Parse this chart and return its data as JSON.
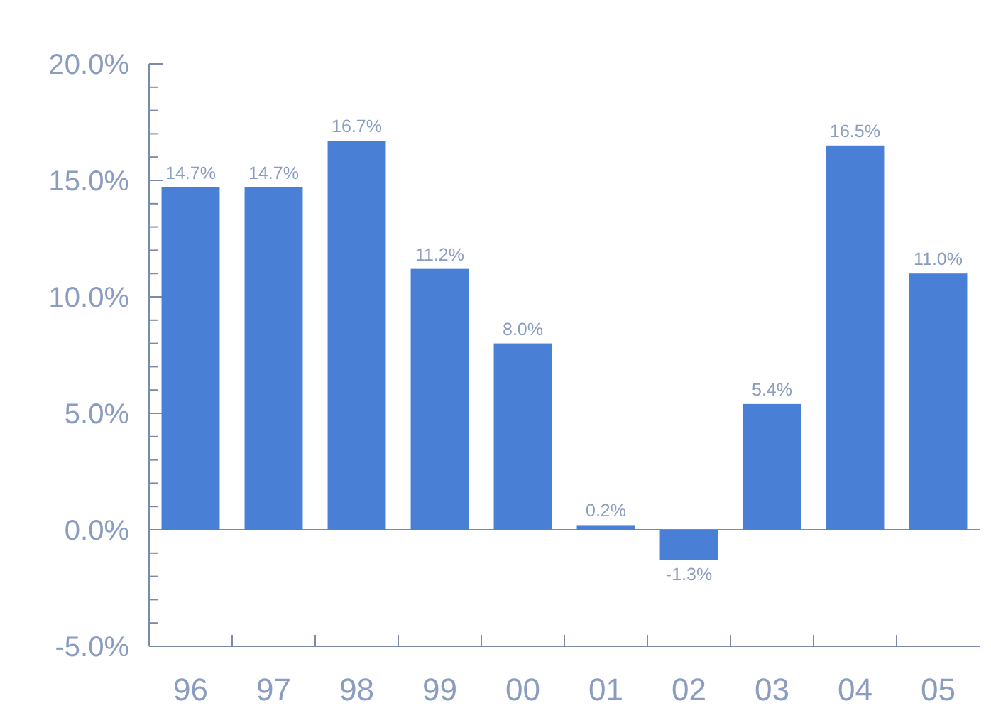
{
  "chart_data": {
    "type": "bar",
    "categories": [
      "96",
      "97",
      "98",
      "99",
      "00",
      "01",
      "02",
      "03",
      "04",
      "05"
    ],
    "values": [
      14.7,
      14.7,
      16.7,
      11.2,
      8.0,
      0.2,
      -1.3,
      5.4,
      16.5,
      11.0
    ],
    "value_labels": [
      "14.7%",
      "14.7%",
      "16.7%",
      "11.2%",
      "8.0%",
      "0.2%",
      "-1.3%",
      "5.4%",
      "16.5%",
      "11.0%"
    ],
    "color": "#4a7fd6",
    "ylim": [
      -5,
      20
    ],
    "yticks": [
      {
        "value": -5,
        "label": "-5.0%"
      },
      {
        "value": -4,
        "label": null
      },
      {
        "value": -3,
        "label": null
      },
      {
        "value": -2,
        "label": null
      },
      {
        "value": -1,
        "label": null
      },
      {
        "value": 0,
        "label": "0.0%"
      },
      {
        "value": 1,
        "label": null
      },
      {
        "value": 2,
        "label": null
      },
      {
        "value": 3,
        "label": null
      },
      {
        "value": 4,
        "label": null
      },
      {
        "value": 5,
        "label": "5.0%"
      },
      {
        "value": 6,
        "label": null
      },
      {
        "value": 7,
        "label": null
      },
      {
        "value": 8,
        "label": null
      },
      {
        "value": 9,
        "label": null
      },
      {
        "value": 10,
        "label": "10.0%"
      },
      {
        "value": 11,
        "label": null
      },
      {
        "value": 12,
        "label": null
      },
      {
        "value": 13,
        "label": null
      },
      {
        "value": 14,
        "label": null
      },
      {
        "value": 15,
        "label": "15.0%"
      },
      {
        "value": 16,
        "label": null
      },
      {
        "value": 17,
        "label": null
      },
      {
        "value": 18,
        "label": null
      },
      {
        "value": 19,
        "label": null
      },
      {
        "value": 20,
        "label": "20.0%"
      }
    ],
    "ref_lines": [
      {
        "axis": "y",
        "value": 0,
        "color": "#7a8aa8"
      }
    ],
    "grid": false
  }
}
